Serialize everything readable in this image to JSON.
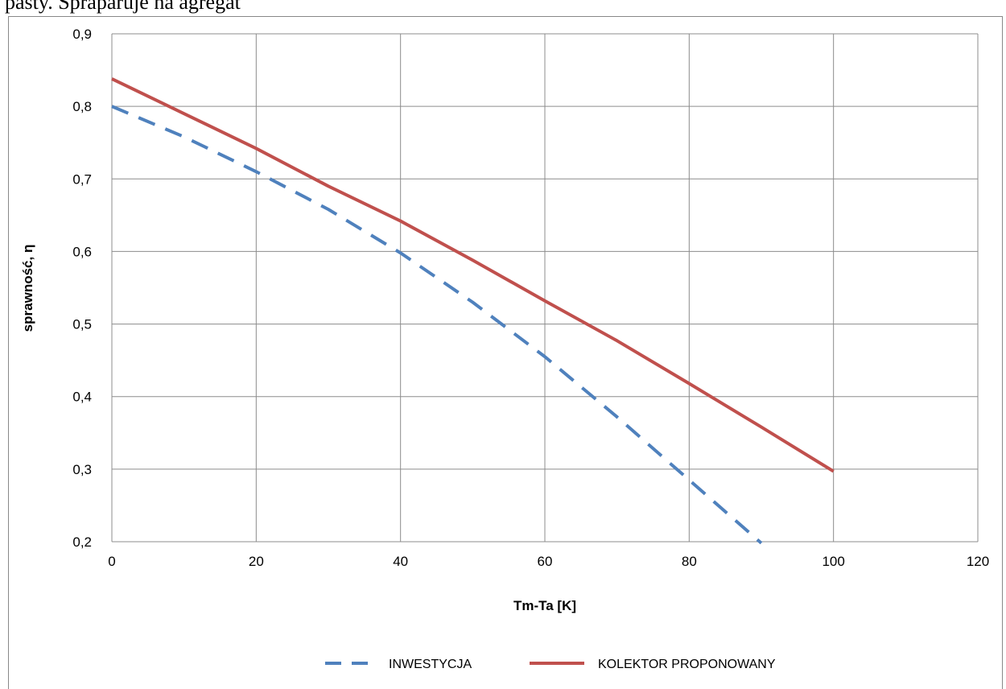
{
  "header_fragment": "pasty. Spraparuje na agregat",
  "chart_data": {
    "type": "line",
    "xlabel": "Tm-Ta  [K]",
    "ylabel": "sprawność, η",
    "xlim": [
      0,
      120
    ],
    "ylim": [
      0.2,
      0.9
    ],
    "x_ticks": [
      0,
      20,
      40,
      60,
      80,
      100,
      120
    ],
    "y_ticks": [
      0.2,
      0.3,
      0.4,
      0.5,
      0.6,
      0.7,
      0.8,
      0.9
    ],
    "x_tick_labels": [
      "0",
      "20",
      "40",
      "60",
      "80",
      "100",
      "120"
    ],
    "y_tick_labels": [
      "0,2",
      "0,3",
      "0,4",
      "0,5",
      "0,6",
      "0,7",
      "0,8",
      "0,9"
    ],
    "grid": true,
    "legend_position": "bottom",
    "series": [
      {
        "name": "INWESTYCJA",
        "color": "#4f81bd",
        "style": "dashed",
        "x": [
          0,
          10,
          20,
          30,
          40,
          50,
          60,
          70,
          80,
          90
        ],
        "y": [
          0.8,
          0.758,
          0.71,
          0.658,
          0.598,
          0.53,
          0.455,
          0.372,
          0.285,
          0.198
        ]
      },
      {
        "name": "KOLEKTOR PROPONOWANY",
        "color": "#c0504d",
        "style": "solid",
        "x": [
          0,
          10,
          20,
          30,
          40,
          50,
          60,
          70,
          80,
          90,
          100
        ],
        "y": [
          0.838,
          0.79,
          0.742,
          0.69,
          0.642,
          0.588,
          0.532,
          0.477,
          0.418,
          0.358,
          0.297
        ]
      }
    ]
  }
}
